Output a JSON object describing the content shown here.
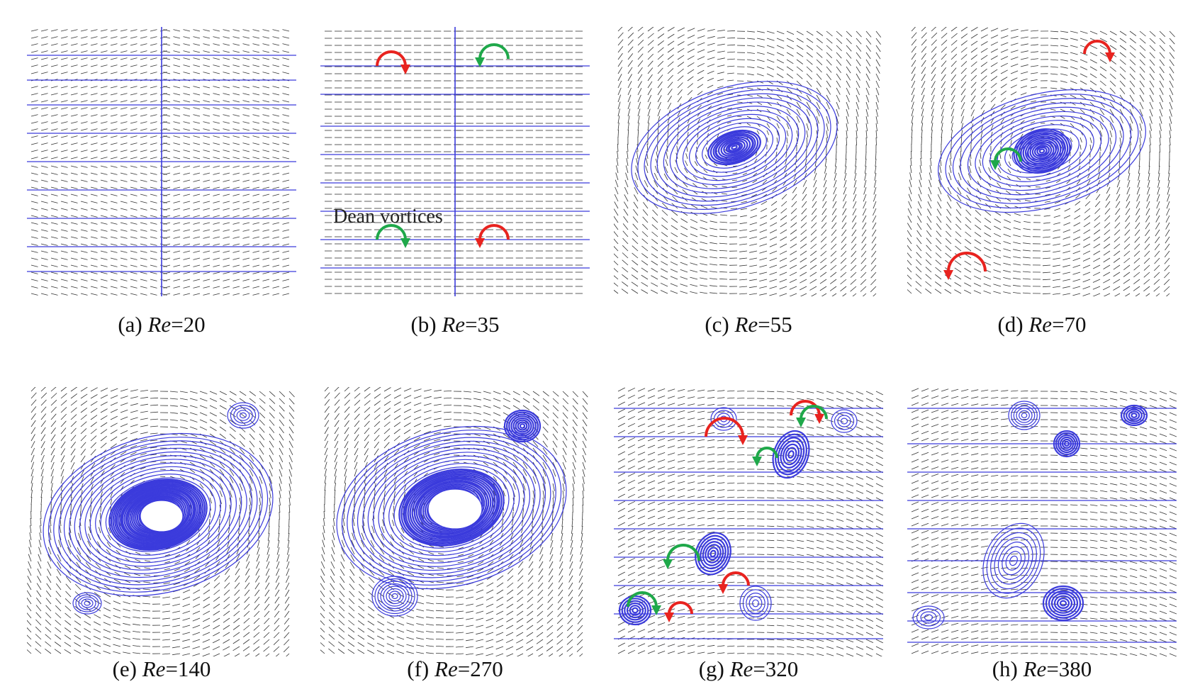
{
  "colors": {
    "streamline": "#3b3bdc",
    "vector": "#333333",
    "arrow_red": "#e8231f",
    "arrow_green": "#1fa84a"
  },
  "annotation_text": "Dean vortices",
  "panels": [
    {
      "letter": "(a)",
      "re_label": "Re",
      "re_value": "=20",
      "icon": "streamline-field"
    },
    {
      "letter": "(b)",
      "re_label": "Re",
      "re_value": "=35",
      "icon": "streamline-field"
    },
    {
      "letter": "(c)",
      "re_label": "Re",
      "re_value": "=55",
      "icon": "streamline-field"
    },
    {
      "letter": "(d)",
      "re_label": "Re",
      "re_value": "=70",
      "icon": "streamline-field"
    },
    {
      "letter": "(e)",
      "re_label": "Re",
      "re_value": "=140",
      "icon": "streamline-field"
    },
    {
      "letter": "(f)",
      "re_label": "Re",
      "re_value": "=270",
      "icon": "streamline-field"
    },
    {
      "letter": "(g)",
      "re_label": "Re",
      "re_value": "=320",
      "icon": "streamline-field"
    },
    {
      "letter": "(h)",
      "re_label": "Re",
      "re_value": "=380",
      "icon": "streamline-field"
    }
  ]
}
